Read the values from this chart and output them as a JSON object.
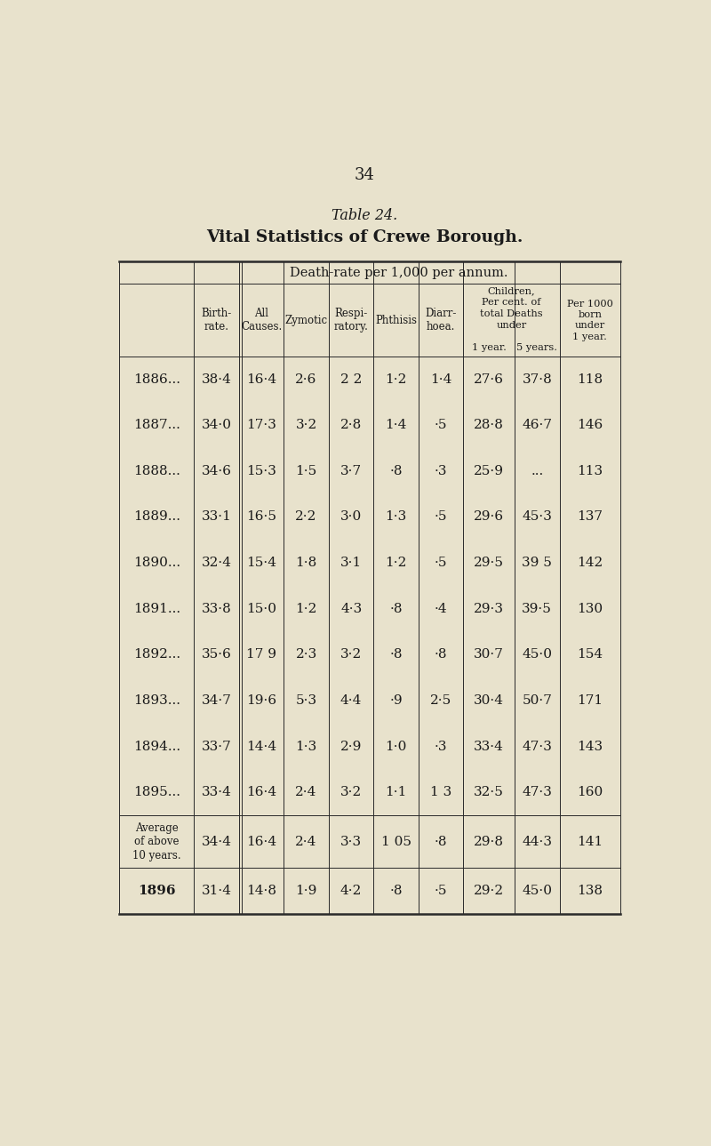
{
  "page_number": "34",
  "table_title": "Table 24.",
  "table_subtitle": "Vital Statistics of Crewe Borough.",
  "background_color": "#e8e2cc",
  "text_color": "#1a1a1a",
  "rows": [
    [
      "1886...",
      "38·4",
      "16·4",
      "2·6",
      "2 2",
      "1·2",
      "1·4",
      "27·6",
      "37·8",
      "118"
    ],
    [
      "1887...",
      "34·0",
      "17·3",
      "3·2",
      "2·8",
      "1·4",
      "·5",
      "28·8",
      "46·7",
      "146"
    ],
    [
      "1888...",
      "34·6",
      "15·3",
      "1·5",
      "3·7",
      "·8",
      "·3",
      "25·9",
      "...",
      "113"
    ],
    [
      "1889...",
      "33·1",
      "16·5",
      "2·2",
      "3·0",
      "1·3",
      "·5",
      "29·6",
      "45·3",
      "137"
    ],
    [
      "1890...",
      "32·4",
      "15·4",
      "1·8",
      "3·1",
      "1·2",
      "·5",
      "29·5",
      "39 5",
      "142"
    ],
    [
      "1891...",
      "33·8",
      "15·0",
      "1·2",
      "4·3",
      "·8",
      "·4",
      "29·3",
      "39·5",
      "130"
    ],
    [
      "1892...",
      "35·6",
      "17 9",
      "2·3",
      "3·2",
      "·8",
      "·8",
      "30·7",
      "45·0",
      "154"
    ],
    [
      "1893...",
      "34·7",
      "19·6",
      "5·3",
      "4·4",
      "·9",
      "2·5",
      "30·4",
      "50·7",
      "171"
    ],
    [
      "1894...",
      "33·7",
      "14·4",
      "1·3",
      "2·9",
      "1·0",
      "·3",
      "33·4",
      "47·3",
      "143"
    ],
    [
      "1895...",
      "33·4",
      "16·4",
      "2·4",
      "3·2",
      "1·1",
      "1 3",
      "32·5",
      "47·3",
      "160"
    ]
  ],
  "avg_row": [
    "Average\nof above\n10 years.",
    "34·4",
    "16·4",
    "2·4",
    "3·3",
    "1 05",
    "·8",
    "29·8",
    "44·3",
    "141"
  ],
  "last_row": [
    "1896",
    "31·4",
    "14·8",
    "1·9",
    "4·2",
    "·8",
    "·5",
    "29·2",
    "45·0",
    "138"
  ]
}
